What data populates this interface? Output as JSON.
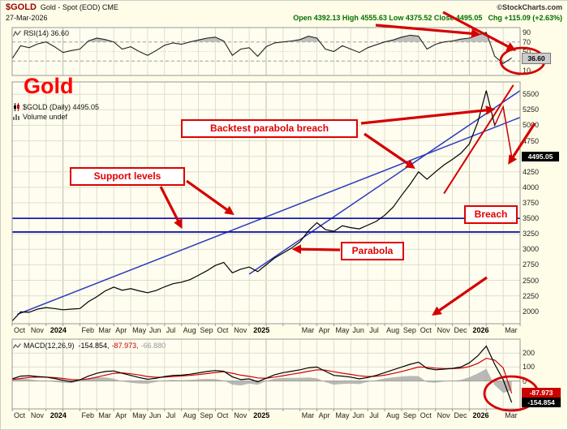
{
  "header": {
    "symbol": "$GOLD",
    "title": "Gold - Spot (EOD) CME",
    "site": "©StockCharts.com",
    "date": "27-Mar-2026",
    "quote": "Open 4392.13  High 4555.63  Low 4375.52  Close 4495.05",
    "chg": "Chg +115.09 (+2.63%)"
  },
  "rsi_panel": {
    "label": "RSI(14) 36.60",
    "last_value_box": "36.60",
    "ticks": [
      90,
      70,
      50,
      30,
      10
    ]
  },
  "main_panel": {
    "watermark": "Gold",
    "legend_symbol": "$GOLD (Daily) 4495.05",
    "legend_volume": "Volume undef",
    "last_value_box": "4495.05",
    "ticks": [
      5500,
      5250,
      5000,
      4750,
      4500,
      4250,
      4000,
      3750,
      3500,
      3250,
      3000,
      2750,
      2500,
      2250,
      2000
    ]
  },
  "macd_panel": {
    "label": "MACD(12,26,9)",
    "v1": "-154.854,",
    "v2": "-87.973,",
    "v3": "-66.880",
    "box_signal": "-87.973",
    "box_macd": "-154.854",
    "ticks": [
      200,
      100,
      0
    ]
  },
  "annotations": {
    "backtest": {
      "label": "Backtest parabola breach"
    },
    "support": {
      "label": "Support  levels"
    },
    "breach": {
      "label": "Breach"
    },
    "parabola": {
      "label": "Parabola"
    }
  },
  "x_axis": {
    "labels": [
      {
        "t": "Oct",
        "m": 0
      },
      {
        "t": "Nov",
        "m": 1
      },
      {
        "t": "2024",
        "m": 2.15,
        "y": true
      },
      {
        "t": "Feb",
        "m": 4
      },
      {
        "t": "Mar",
        "m": 5
      },
      {
        "t": "Apr",
        "m": 6
      },
      {
        "t": "May",
        "m": 7
      },
      {
        "t": "Jun",
        "m": 8
      },
      {
        "t": "Jul",
        "m": 9
      },
      {
        "t": "Aug",
        "m": 10
      },
      {
        "t": "Sep",
        "m": 11
      },
      {
        "t": "Oct",
        "m": 12
      },
      {
        "t": "Nov",
        "m": 13
      },
      {
        "t": "2025",
        "m": 14.15,
        "y": true
      },
      {
        "t": "Mar",
        "m": 17
      },
      {
        "t": "Apr",
        "m": 18
      },
      {
        "t": "May",
        "m": 19
      },
      {
        "t": "Jun",
        "m": 20
      },
      {
        "t": "Jul",
        "m": 21
      },
      {
        "t": "Aug",
        "m": 22
      },
      {
        "t": "Sep",
        "m": 23
      },
      {
        "t": "Oct",
        "m": 24
      },
      {
        "t": "Nov",
        "m": 25
      },
      {
        "t": "Dec",
        "m": 26
      },
      {
        "t": "2026",
        "m": 27.1,
        "y": true
      },
      {
        "t": "Mar",
        "m": 29
      }
    ]
  },
  "chart_data": [
    {
      "id": "rsi",
      "type": "line",
      "title": "RSI(14)",
      "ylim": [
        0,
        100
      ],
      "overbought": 70,
      "oversold": 30,
      "last": 36.6,
      "x_start": "Oct-2023",
      "x_step_months": 0.5,
      "values": [
        35,
        62,
        58,
        66,
        70,
        60,
        48,
        52,
        55,
        72,
        78,
        75,
        70,
        55,
        60,
        50,
        42,
        52,
        63,
        68,
        65,
        70,
        74,
        78,
        80,
        72,
        42,
        55,
        58,
        40,
        60,
        68,
        70,
        72,
        75,
        82,
        78,
        55,
        50,
        62,
        55,
        48,
        58,
        64,
        70,
        74,
        80,
        84,
        82,
        55,
        65,
        70,
        72,
        76,
        78,
        84,
        90,
        40,
        25,
        36.6
      ]
    },
    {
      "id": "price",
      "type": "candlestick",
      "title": "$GOLD Gold - Spot (EOD) CME Daily",
      "ylim": [
        1800,
        5700
      ],
      "last": 4495.05,
      "open": 4392.13,
      "high": 4555.63,
      "low": 4375.52,
      "x_start": "Oct-2023",
      "x_step_months": 0.5,
      "values": [
        1845,
        1990,
        1985,
        2035,
        2060,
        2045,
        2025,
        2035,
        2045,
        2155,
        2235,
        2330,
        2390,
        2340,
        2365,
        2330,
        2300,
        2335,
        2395,
        2445,
        2470,
        2510,
        2580,
        2655,
        2740,
        2790,
        2620,
        2680,
        2715,
        2640,
        2750,
        2860,
        2940,
        3020,
        3120,
        3300,
        3430,
        3320,
        3290,
        3380,
        3350,
        3330,
        3390,
        3450,
        3550,
        3680,
        3870,
        4050,
        4250,
        4130,
        4250,
        4360,
        4450,
        4550,
        4700,
        5050,
        5560,
        5000,
        5300,
        4495.05
      ],
      "support_levels": [
        3500,
        3280
      ],
      "trendlines": [
        {
          "name": "long-uptrend",
          "color": "blue",
          "from": [
            0.3,
            1950
          ],
          "to": [
            30.2,
            5150
          ]
        },
        {
          "name": "parabola-support",
          "color": "blue",
          "from": [
            14,
            2600
          ],
          "to": [
            30,
            5560
          ]
        },
        {
          "name": "parabola-final",
          "color": "red",
          "from": [
            25.5,
            3900
          ],
          "to": [
            29.6,
            5650
          ]
        }
      ]
    },
    {
      "id": "macd",
      "type": "line",
      "title": "MACD(12,26,9)",
      "ylim": [
        -200,
        300
      ],
      "last_macd": -154.854,
      "last_signal": -87.973,
      "last_histogram": -66.88,
      "x_start": "Oct-2023",
      "x_step_months": 0.5,
      "series": [
        {
          "name": "macd",
          "color": "#000000",
          "values": [
            15,
            35,
            38,
            32,
            28,
            18,
            5,
            -5,
            8,
            35,
            55,
            68,
            72,
            55,
            40,
            25,
            12,
            20,
            32,
            40,
            42,
            48,
            58,
            68,
            75,
            70,
            30,
            10,
            15,
            -5,
            20,
            45,
            60,
            70,
            80,
            95,
            100,
            70,
            40,
            35,
            28,
            15,
            25,
            40,
            60,
            80,
            100,
            120,
            135,
            90,
            80,
            85,
            90,
            100,
            130,
            180,
            250,
            120,
            10,
            -154.854
          ]
        },
        {
          "name": "signal",
          "color": "#cc0000",
          "values": [
            10,
            18,
            25,
            28,
            28,
            25,
            18,
            10,
            8,
            15,
            28,
            42,
            55,
            58,
            52,
            43,
            32,
            27,
            28,
            32,
            36,
            40,
            46,
            53,
            61,
            66,
            56,
            42,
            33,
            22,
            20,
            28,
            38,
            48,
            58,
            70,
            80,
            78,
            66,
            56,
            47,
            37,
            32,
            34,
            42,
            54,
            68,
            84,
            100,
            98,
            92,
            89,
            89,
            92,
            103,
            126,
            163,
            150,
            95,
            -87.973
          ]
        }
      ]
    }
  ]
}
